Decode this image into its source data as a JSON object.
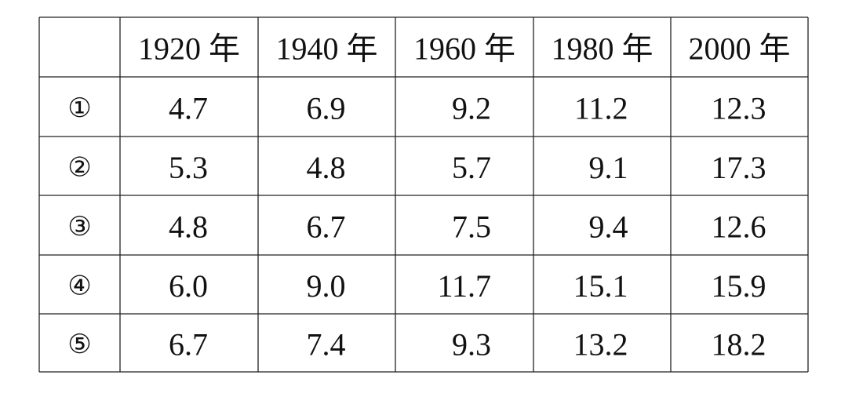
{
  "table": {
    "header": [
      "1920 年",
      "1940 年",
      "1960 年",
      "1980 年",
      "2000 年"
    ],
    "rows": [
      [
        "①",
        "4.7",
        "6.9",
        "9.2",
        "11.2",
        "12.3"
      ],
      [
        "②",
        "5.3",
        "4.8",
        "5.7",
        "9.1",
        "17.3"
      ],
      [
        "③",
        "4.8",
        "6.7",
        "7.5",
        "9.4",
        "12.6"
      ],
      [
        "④",
        "6.0",
        "9.0",
        "11.7",
        "15.1",
        "15.9"
      ],
      [
        "⑤",
        "6.7",
        "7.4",
        "9.3",
        "13.2",
        "18.2"
      ]
    ]
  }
}
